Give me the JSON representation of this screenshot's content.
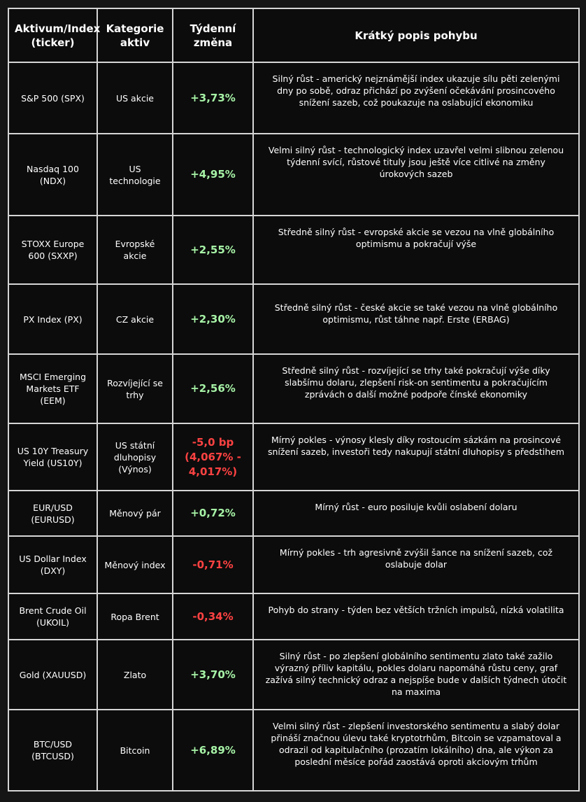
{
  "table": {
    "headers": {
      "asset": "Aktivum/Index (ticker)",
      "category": "Kategorie aktiv",
      "change": "Týdenní změna",
      "description": "Krátký popis pohybu"
    },
    "rows": [
      {
        "asset": "S&P 500 (SPX)",
        "category": "US akcie",
        "change": "+3,73%",
        "direction": "up",
        "description": "Silný růst - americký nejznámější index ukazuje sílu pěti zelenými dny po sobě, odraz přichází po zvýšení očekávání prosincového snížení sazeb, což poukazuje na oslabující ekonomiku"
      },
      {
        "asset": "Nasdaq 100 (NDX)",
        "category": "US technologie",
        "change": "+4,95%",
        "direction": "up",
        "description": "Velmi silný růst - technologický index uzavřel velmi slibnou zelenou týdenní svící, růstové tituly jsou ještě více citlivé na změny úrokových sazeb"
      },
      {
        "asset": "STOXX Europe 600 (SXXP)",
        "category": "Evropské akcie",
        "change": "+2,55%",
        "direction": "up",
        "description": "Středně silný růst - evropské akcie se vezou na vlně globálního optimismu a pokračují výše"
      },
      {
        "asset": "PX Index (PX)",
        "category": "CZ akcie",
        "change": "+2,30%",
        "direction": "up",
        "description": "Středně silný růst - české akcie se také vezou na vlně globálního optimismu, růst táhne např. Erste (ERBAG)"
      },
      {
        "asset": "MSCI Emerging Markets ETF (EEM)",
        "category": "Rozvíjející se trhy",
        "change": "+2,56%",
        "direction": "up",
        "description": "Středně silný růst - rozvíjející se trhy také pokračují výše díky slabšímu dolaru, zlepšení risk-on sentimentu a pokračujícím zprávách o další možné podpoře čínské ekonomiky"
      },
      {
        "asset": "US 10Y Treasury Yield (US10Y)",
        "category": "US státní dluhopisy (Výnos)",
        "change": "-5,0 bp (4,067% - 4,017%)",
        "direction": "down",
        "description": "Mírný pokles - výnosy klesly díky rostoucím sázkám na prosincové snížení sazeb, investoři tedy nakupují státní dluhopisy s předstihem"
      },
      {
        "asset": "EUR/USD (EURUSD)",
        "category": "Měnový pár",
        "change": "+0,72%",
        "direction": "up",
        "description": "Mírný růst - euro posiluje kvůli oslabení dolaru"
      },
      {
        "asset": "US Dollar Index (DXY)",
        "category": "Měnový index",
        "change": "-0,71%",
        "direction": "down",
        "description": "Mírný pokles - trh agresivně zvýšil šance na snížení sazeb, což oslabuje dolar"
      },
      {
        "asset": "Brent Crude Oil (UKOIL)",
        "category": "Ropa Brent",
        "change": "-0,34%",
        "direction": "down",
        "description": "Pohyb do strany - týden bez větších tržních impulsů, nízká volatilita"
      },
      {
        "asset": "Gold (XAUUSD)",
        "category": "Zlato",
        "change": "+3,70%",
        "direction": "up",
        "description": "Silný růst - po zlepšení globálního sentimentu zlato také zažilo výrazný příliv kapitálu, pokles dolaru napomáhá růstu ceny, graf zažívá silný technický odraz a nejspíše bude v dalších týdnech útočit na maxima"
      },
      {
        "asset": "BTC/USD (BTCUSD)",
        "category": "Bitcoin",
        "change": "+6,89%",
        "direction": "up",
        "description": "Velmi silný růst - zlepšení investorského sentimentu a slabý dolar přináší značnou úlevu také kryptotrhům, Bitcoin se vzpamatoval a odrazil od kapitulačního (prozatím lokálního) dna, ale výkon za poslední měsíce pořád zaostává oproti akciovým trhům"
      }
    ]
  },
  "colors": {
    "background": "#151515",
    "table_bg": "#0c0c0c",
    "border": "#d6d6d6",
    "positive": "#a6f2a6",
    "negative": "#ff4242"
  }
}
